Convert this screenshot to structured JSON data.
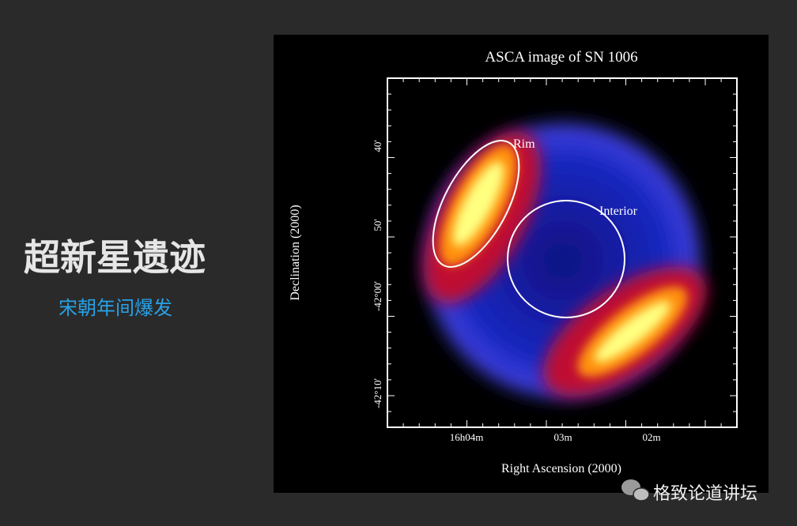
{
  "slide": {
    "title": "超新星遗迹",
    "subtitle": "宋朝年间爆发"
  },
  "image": {
    "title": "ASCA image of SN 1006",
    "y_axis_label": "Declination (2000)",
    "x_axis_label": "Right Ascension (2000)",
    "y_ticks": [
      "40'",
      "50'",
      "-42°00'",
      "-42°10'"
    ],
    "x_ticks": [
      "16h04m",
      "03m",
      "02m"
    ],
    "annotations": [
      "Rim",
      "Interior"
    ]
  },
  "watermark": "格致论道讲坛"
}
